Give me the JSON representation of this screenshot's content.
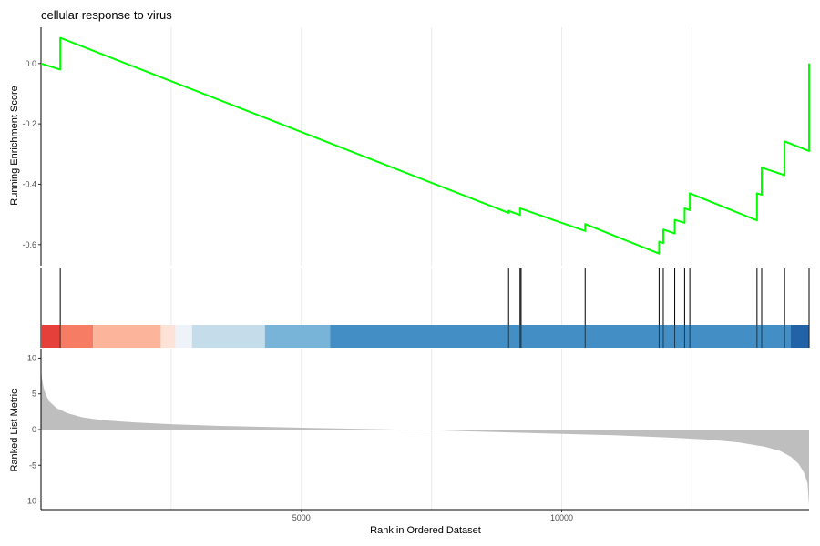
{
  "chart_data": {
    "type": "line",
    "title": "cellular response to virus",
    "xlabel": "Rank in Ordered Dataset",
    "xlim": [
      0,
      14750
    ],
    "x_ticks": [
      5000,
      10000
    ],
    "x_tick_labels": [
      "5000",
      "10000"
    ],
    "grid": true,
    "panels": {
      "running_score": {
        "ylabel": "Running Enrichment Score",
        "ylim": [
          -0.67,
          0.12
        ],
        "y_ticks": [
          0.0,
          -0.2,
          -0.4,
          -0.6
        ],
        "y_tick_labels": [
          "0.0",
          "-0.2",
          "-0.4",
          "-0.6"
        ],
        "line_color": "#00ff00",
        "points": [
          [
            0,
            0.0
          ],
          [
            370,
            -0.02
          ],
          [
            370,
            0.085
          ],
          [
            8980,
            -0.495
          ],
          [
            8980,
            -0.488
          ],
          [
            9200,
            -0.502
          ],
          [
            9200,
            -0.48
          ],
          [
            10450,
            -0.555
          ],
          [
            10450,
            -0.532
          ],
          [
            11870,
            -0.63
          ],
          [
            11870,
            -0.59
          ],
          [
            11950,
            -0.595
          ],
          [
            11950,
            -0.55
          ],
          [
            12170,
            -0.563
          ],
          [
            12170,
            -0.518
          ],
          [
            12360,
            -0.528
          ],
          [
            12360,
            -0.48
          ],
          [
            12460,
            -0.486
          ],
          [
            12460,
            -0.43
          ],
          [
            13750,
            -0.52
          ],
          [
            13750,
            -0.43
          ],
          [
            13840,
            -0.435
          ],
          [
            13840,
            -0.345
          ],
          [
            14280,
            -0.37
          ],
          [
            14280,
            -0.258
          ],
          [
            14750,
            -0.29
          ],
          [
            14750,
            0.0
          ]
        ]
      },
      "gene_hits": {
        "positions": [
          370,
          8980,
          9200,
          9220,
          10450,
          11870,
          11950,
          12170,
          12360,
          12460,
          13750,
          13840,
          14280,
          14750
        ]
      },
      "color_bar": {
        "segments": [
          {
            "from": 0,
            "to": 370,
            "color": "#e6403a"
          },
          {
            "from": 370,
            "to": 1000,
            "color": "#f67c63"
          },
          {
            "from": 1000,
            "to": 2300,
            "color": "#fcb59b"
          },
          {
            "from": 2300,
            "to": 2580,
            "color": "#fde3d7"
          },
          {
            "from": 2580,
            "to": 2900,
            "color": "#eef2f9"
          },
          {
            "from": 2900,
            "to": 4300,
            "color": "#c5dcea"
          },
          {
            "from": 4300,
            "to": 5550,
            "color": "#78b3d8"
          },
          {
            "from": 5550,
            "to": 14400,
            "color": "#438ec4"
          },
          {
            "from": 14400,
            "to": 14750,
            "color": "#2263a8"
          }
        ]
      },
      "ranked_metric": {
        "ylabel": "Ranked List Metric",
        "ylim": [
          -11.2,
          11.2
        ],
        "y_ticks": [
          10,
          5,
          0,
          -5,
          -10
        ],
        "y_tick_labels": [
          "10",
          "5",
          "0",
          "-5",
          "-10"
        ],
        "fill_color": "#bebebe",
        "points": [
          [
            0,
            8.6
          ],
          [
            20,
            7.0
          ],
          [
            60,
            5.5
          ],
          [
            150,
            4.0
          ],
          [
            300,
            3.0
          ],
          [
            500,
            2.3
          ],
          [
            800,
            1.7
          ],
          [
            1200,
            1.3
          ],
          [
            1800,
            1.0
          ],
          [
            2500,
            0.75
          ],
          [
            3500,
            0.5
          ],
          [
            5000,
            0.25
          ],
          [
            6500,
            0.05
          ],
          [
            7500,
            -0.1
          ],
          [
            8500,
            -0.3
          ],
          [
            10000,
            -0.6
          ],
          [
            11000,
            -0.8
          ],
          [
            12000,
            -1.1
          ],
          [
            12800,
            -1.4
          ],
          [
            13400,
            -1.8
          ],
          [
            13900,
            -2.4
          ],
          [
            14200,
            -3.0
          ],
          [
            14400,
            -3.8
          ],
          [
            14550,
            -4.8
          ],
          [
            14650,
            -6.0
          ],
          [
            14720,
            -7.5
          ],
          [
            14750,
            -10.6
          ]
        ]
      }
    }
  }
}
